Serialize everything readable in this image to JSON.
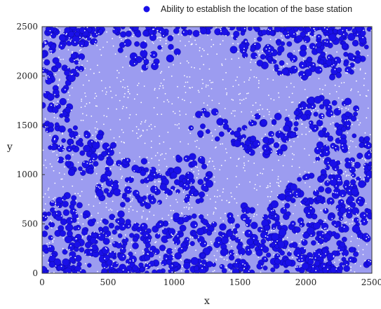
{
  "chart_data": {
    "type": "scatter",
    "title": "",
    "xlabel": "x",
    "ylabel": "y",
    "xlim": [
      0,
      2500
    ],
    "ylim": [
      0,
      2500
    ],
    "x_ticks": [
      0,
      500,
      1000,
      1500,
      2000,
      2500
    ],
    "y_ticks": [
      0,
      500,
      1000,
      1500,
      2000,
      2500
    ],
    "x_tick_labels": [
      "0",
      "500",
      "1000",
      "1500",
      "2000",
      "2500"
    ],
    "y_tick_labels": [
      "0",
      "500",
      "1000",
      "1500",
      "2000",
      "2500"
    ],
    "grid": false,
    "legend_position": "top-right",
    "series": [
      {
        "name": "Ability to establish the location of the base station",
        "color": "#1a10e8",
        "marker": "circle"
      }
    ],
    "background_region_color": "#9c9cf0",
    "sensor_point_color": "#ffffff",
    "clusters": [
      {
        "x": 150,
        "y": 2200,
        "rx": 180,
        "ry": 280,
        "density": 0.9
      },
      {
        "x": 350,
        "y": 2400,
        "rx": 200,
        "ry": 100,
        "density": 0.9
      },
      {
        "x": 100,
        "y": 1700,
        "rx": 120,
        "ry": 300,
        "density": 0.85
      },
      {
        "x": 300,
        "y": 1250,
        "rx": 250,
        "ry": 250,
        "density": 0.85
      },
      {
        "x": 200,
        "y": 400,
        "rx": 220,
        "ry": 400,
        "density": 0.95
      },
      {
        "x": 600,
        "y": 300,
        "rx": 250,
        "ry": 300,
        "density": 0.9
      },
      {
        "x": 700,
        "y": 900,
        "rx": 300,
        "ry": 250,
        "density": 0.8
      },
      {
        "x": 1100,
        "y": 950,
        "rx": 200,
        "ry": 250,
        "density": 0.85
      },
      {
        "x": 1100,
        "y": 300,
        "rx": 300,
        "ry": 300,
        "density": 0.85
      },
      {
        "x": 1600,
        "y": 350,
        "rx": 250,
        "ry": 350,
        "density": 0.95
      },
      {
        "x": 2100,
        "y": 500,
        "rx": 400,
        "ry": 500,
        "density": 0.95
      },
      {
        "x": 2300,
        "y": 1150,
        "rx": 220,
        "ry": 350,
        "density": 0.9
      },
      {
        "x": 1700,
        "y": 1400,
        "rx": 280,
        "ry": 200,
        "density": 0.9
      },
      {
        "x": 2150,
        "y": 1600,
        "rx": 250,
        "ry": 200,
        "density": 0.85
      },
      {
        "x": 2050,
        "y": 2250,
        "rx": 450,
        "ry": 280,
        "density": 0.95
      },
      {
        "x": 1600,
        "y": 2300,
        "rx": 150,
        "ry": 200,
        "density": 0.6
      },
      {
        "x": 800,
        "y": 2250,
        "rx": 250,
        "ry": 200,
        "density": 0.5
      },
      {
        "x": 1250,
        "y": 1500,
        "rx": 200,
        "ry": 150,
        "density": 0.45
      }
    ]
  }
}
